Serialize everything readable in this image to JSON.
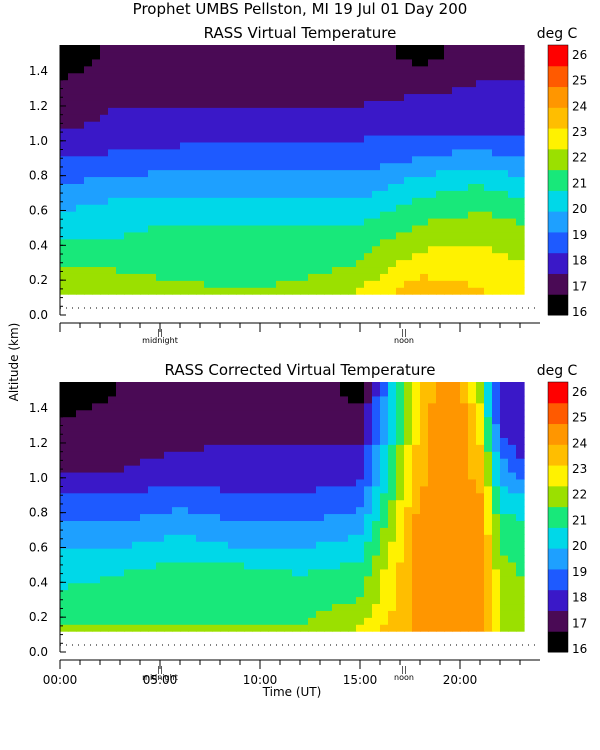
{
  "figure": {
    "header": "Prophet  UMBS Pellston, MI  19 Jul 01 Day 200",
    "ylabel": "Altitude (km)",
    "xlabel": "Time (UT)"
  },
  "chart_data": [
    {
      "type": "heatmap",
      "title": "RASS Virtual Temperature",
      "colorbar_label": "deg C",
      "ylim": [
        0.0,
        1.55
      ],
      "xlim": [
        0,
        24
      ],
      "yticks": [
        "0.0",
        "0.2",
        "0.4",
        "0.6",
        "0.8",
        "1.0",
        "1.2",
        "1.4"
      ],
      "time_markers": [
        {
          "x": 5.0,
          "label": "midnight"
        },
        {
          "x": 17.2,
          "label": "noon"
        }
      ],
      "data_x_range": [
        0,
        23.2
      ],
      "data_y_range": [
        0.12,
        1.55
      ],
      "heights_km": [
        0.15,
        0.3,
        0.45,
        0.6,
        0.75,
        0.9,
        1.05,
        1.2,
        1.35,
        1.5
      ],
      "times_ut": [
        0,
        3,
        6,
        9,
        12,
        15,
        18,
        21,
        23
      ],
      "values_degC": [
        [
          23.5,
          23.5,
          23.2,
          23.0,
          23.2,
          24.0,
          25.5,
          25.0,
          24.5
        ],
        [
          23.0,
          22.8,
          22.5,
          22.5,
          22.5,
          23.0,
          24.5,
          24.5,
          24.0
        ],
        [
          22.0,
          22.0,
          22.5,
          22.5,
          22.5,
          22.5,
          23.5,
          23.8,
          23.5
        ],
        [
          21.0,
          21.5,
          21.5,
          21.5,
          21.5,
          21.5,
          22.5,
          23.0,
          22.5
        ],
        [
          20.0,
          20.5,
          20.5,
          20.5,
          20.5,
          20.5,
          21.5,
          22.0,
          21.5
        ],
        [
          19.0,
          19.2,
          19.5,
          19.5,
          19.5,
          19.5,
          20.0,
          20.5,
          20.0
        ],
        [
          18.0,
          18.5,
          18.5,
          18.5,
          18.5,
          18.8,
          19.0,
          19.0,
          18.8
        ],
        [
          17.3,
          18.0,
          18.0,
          18.0,
          18.0,
          18.0,
          18.3,
          18.5,
          18.3
        ],
        [
          17.0,
          17.5,
          17.8,
          17.8,
          17.8,
          17.8,
          17.5,
          18.0,
          18.0
        ],
        [
          16.5,
          17.2,
          17.5,
          17.8,
          17.8,
          17.8,
          16.5,
          17.8,
          17.8
        ]
      ]
    },
    {
      "type": "heatmap",
      "title": "RASS Corrected Virtual Temperature",
      "colorbar_label": "deg C",
      "ylim": [
        0.0,
        1.55
      ],
      "xlim": [
        0,
        24
      ],
      "yticks": [
        "0.0",
        "0.2",
        "0.4",
        "0.6",
        "0.8",
        "1.0",
        "1.2",
        "1.4"
      ],
      "xticks": [
        {
          "x": 0,
          "label": "00:00"
        },
        {
          "x": 5,
          "label": "05:00"
        },
        {
          "x": 10,
          "label": "10:00"
        },
        {
          "x": 15,
          "label": "15:00"
        },
        {
          "x": 20,
          "label": "20:00"
        }
      ],
      "time_markers": [
        {
          "x": 5.0,
          "label": "midnight"
        },
        {
          "x": 17.2,
          "label": "noon"
        }
      ],
      "data_x_range": [
        0,
        23.2
      ],
      "data_y_range": [
        0.12,
        1.55
      ],
      "heights_km": [
        0.15,
        0.3,
        0.45,
        0.6,
        0.75,
        0.9,
        1.05,
        1.2,
        1.35,
        1.5
      ],
      "times_ut": [
        0,
        3,
        6,
        9,
        12,
        15,
        18,
        19,
        20,
        21,
        22,
        23
      ],
      "values_degC": [
        [
          23.0,
          23.0,
          23.0,
          23.0,
          23.0,
          24.0,
          26.5,
          26.5,
          26.5,
          26.5,
          24.0,
          23.5
        ],
        [
          22.5,
          22.5,
          22.5,
          22.5,
          22.5,
          23.0,
          26.5,
          26.5,
          26.5,
          26.5,
          24.0,
          23.0
        ],
        [
          21.5,
          22.0,
          22.5,
          22.5,
          22.0,
          22.5,
          26.5,
          26.5,
          26.5,
          26.5,
          23.5,
          23.0
        ],
        [
          21.0,
          21.0,
          21.5,
          21.0,
          21.0,
          21.5,
          26.5,
          26.5,
          26.5,
          26.5,
          23.0,
          22.5
        ],
        [
          20.0,
          20.0,
          20.5,
          20.0,
          20.0,
          20.5,
          26.5,
          26.5,
          26.5,
          26.5,
          22.5,
          22.0
        ],
        [
          19.0,
          19.0,
          19.5,
          19.0,
          19.0,
          19.5,
          26.0,
          26.5,
          26.5,
          26.0,
          21.5,
          21.0
        ],
        [
          18.0,
          18.0,
          18.5,
          18.5,
          18.5,
          18.5,
          25.5,
          26.5,
          26.5,
          25.5,
          20.5,
          19.5
        ],
        [
          17.3,
          17.5,
          17.8,
          18.0,
          18.0,
          18.0,
          25.5,
          26.5,
          26.5,
          25.0,
          19.5,
          18.5
        ],
        [
          17.0,
          17.3,
          17.5,
          17.8,
          17.8,
          17.5,
          25.5,
          26.5,
          26.5,
          24.5,
          18.5,
          18.0
        ],
        [
          16.5,
          17.0,
          17.5,
          17.8,
          17.8,
          16.5,
          25.0,
          26.5,
          26.5,
          23.5,
          18.0,
          18.0
        ]
      ]
    }
  ],
  "colorbar": {
    "levels": [
      "16",
      "17",
      "18",
      "19",
      "20",
      "21",
      "22",
      "23",
      "24",
      "25",
      "26"
    ],
    "colors": [
      "#000000",
      "#4a0a55",
      "#3a18c8",
      "#1e5aff",
      "#1ea0ff",
      "#00d8e8",
      "#18e87a",
      "#9be000",
      "#fff200",
      "#ffbe00",
      "#ff9600",
      "#ff5a00",
      "#ff0000"
    ],
    "below_color": "#ffffff"
  }
}
